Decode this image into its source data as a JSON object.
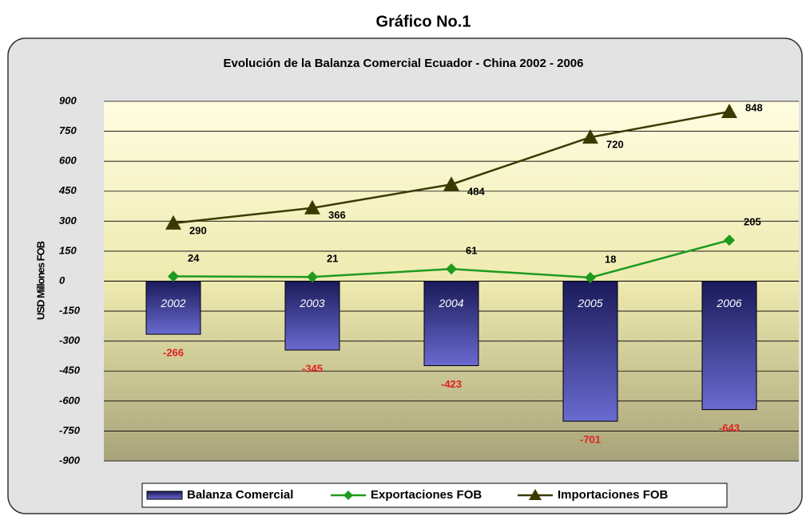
{
  "page_title": "Gráfico No.1",
  "chart_data": {
    "type": "bar",
    "title": "Evolución de la Balanza Comercial Ecuador - China 2002 - 2006",
    "y_label": "USD Millones FOB",
    "categories": [
      "2002",
      "2003",
      "2004",
      "2005",
      "2006"
    ],
    "series": [
      {
        "name": "Balanza Comercial",
        "type": "bar",
        "color": "#2a2a7a",
        "values": [
          -266,
          -345,
          -423,
          -701,
          -643
        ]
      },
      {
        "name": "Exportaciones FOB",
        "type": "line",
        "marker": "diamond",
        "color": "#1f9a1f",
        "values": [
          24,
          21,
          61,
          18,
          205
        ]
      },
      {
        "name": "Importaciones FOB",
        "type": "line",
        "marker": "triangle",
        "color": "#3a3a00",
        "values": [
          290,
          366,
          484,
          720,
          848
        ]
      }
    ],
    "ylim": [
      -900,
      900
    ],
    "yticks": [
      -900,
      -750,
      -600,
      -450,
      -300,
      -150,
      0,
      150,
      300,
      450,
      600,
      750,
      900
    ],
    "grid": true,
    "legend": "bottom"
  }
}
